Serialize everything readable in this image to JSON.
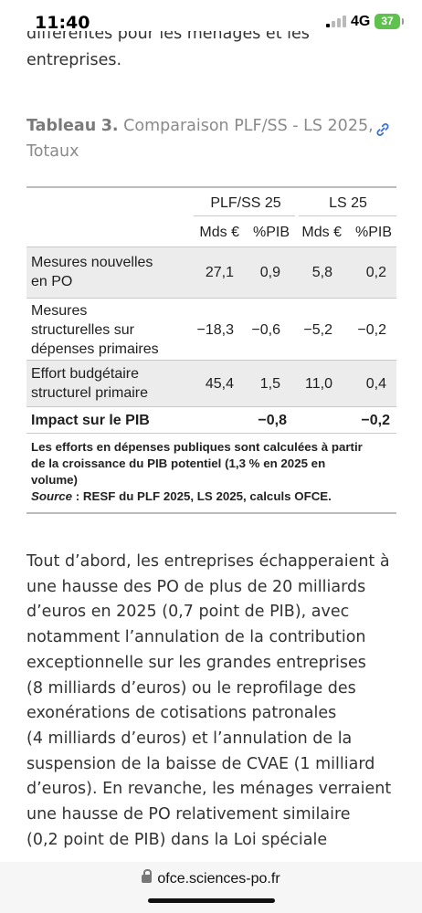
{
  "status": {
    "time": "11:40",
    "network": "4G",
    "battery": "37"
  },
  "article": {
    "previous_lines": [
      "différentes pour les ménages et les",
      "entreprises."
    ],
    "table_caption": {
      "label": "Tableau",
      "number": "3.",
      "title": "Comparaison PLF/SS - LS 2025, Totaux"
    },
    "body_paragraph": "Tout d’abord, les entreprises échapperaient à\nune hausse des PO de plus de 20 milliards\nd’euros en 2025 (0,7 point de PIB), avec\nnotamment l’annulation de la contribution\nexceptionnelle sur les grandes entreprises\n(8 milliards d’euros) ou le reprofilage des\nexonérations de cotisations patronales\n(4 milliards d’euros) et l’annulation de la\nsuspension de la baisse de CVAE (1 milliard\nd’euros). En revanche, les ménages verraient\nune hausse de PO relativement similaire\n(0,2 point de PIB) dans la Loi spéciale"
  },
  "table": {
    "group_headers": [
      "PLF/SS 25",
      "LS 25"
    ],
    "sub_headers": [
      "Mds €",
      "%PIB",
      "Mds €",
      "%PIB"
    ],
    "rows": [
      {
        "label_lines": [
          "Mesures nouvelles",
          "en PO"
        ],
        "values": [
          "27,1",
          "0,9",
          "5,8",
          "0,2"
        ]
      },
      {
        "label_lines": [
          "Mesures",
          "structurelles sur",
          "dépenses primaires"
        ],
        "values": [
          "−18,3",
          "−0,6",
          "−5,2",
          "−0,2"
        ]
      },
      {
        "label_lines": [
          "Effort budgétaire",
          "structurel primaire"
        ],
        "values": [
          "45,4",
          "1,5",
          "11,0",
          "0,4"
        ]
      }
    ],
    "impact": {
      "label": "Impact sur le PIB",
      "plf": "−0,8",
      "ls": "−0,2"
    },
    "notes": {
      "line1": "Les efforts en dépenses publiques sont calculées à partir",
      "line2": "de la croissance du PIB potentiel (1,3 % en 2025 en",
      "line3": "volume)",
      "source_label": "Source",
      "source_text": " : RESF du PLF 2025, LS 2025, calculs OFCE."
    }
  },
  "browser": {
    "url": "ofce.sciences-po.fr"
  },
  "colors": {
    "battery": "#5fc24e",
    "link": "#3a6fd8",
    "row_shade": "#ececec"
  }
}
